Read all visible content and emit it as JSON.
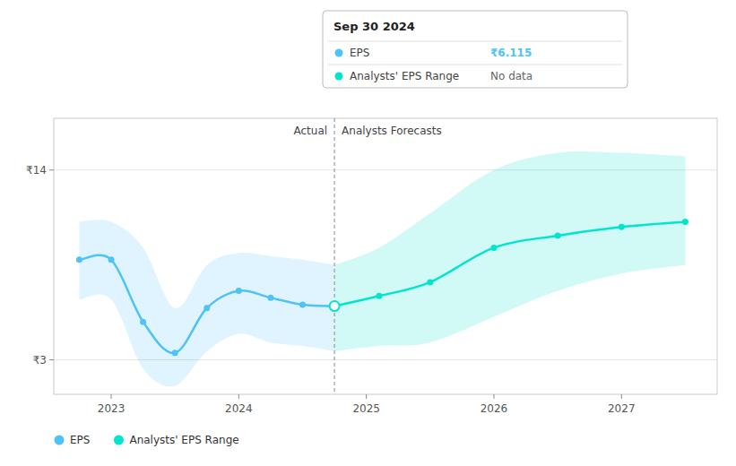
{
  "chart_data": {
    "type": "line",
    "series": [
      {
        "name": "EPS",
        "color": "#4fc3f7",
        "marker": "circle",
        "x": [
          2022.75,
          2023.0,
          2023.25,
          2023.5,
          2023.75,
          2024.0,
          2024.25,
          2024.5,
          2024.75
        ],
        "values": [
          8.8,
          8.8,
          5.2,
          3.4,
          6.0,
          7.0,
          6.6,
          6.2,
          6.115
        ],
        "band_upper": [
          11.0,
          11.0,
          9.5,
          6.0,
          8.5,
          9.2,
          9.0,
          8.8,
          8.5
        ],
        "band_lower": [
          6.5,
          6.5,
          2.5,
          1.5,
          3.5,
          4.5,
          4.0,
          3.8,
          3.5
        ]
      },
      {
        "name": "Analysts' EPS Range",
        "color": "#00e5cc",
        "marker": "circle",
        "x": [
          2024.75,
          2025.1,
          2025.5,
          2026.0,
          2026.5,
          2027.0,
          2027.5
        ],
        "values": [
          6.115,
          6.7,
          7.5,
          9.5,
          10.2,
          10.7,
          11.0
        ],
        "band_upper": [
          8.5,
          9.5,
          11.5,
          14.0,
          15.0,
          15.0,
          14.8
        ],
        "band_lower": [
          3.5,
          3.8,
          4.0,
          5.5,
          7.0,
          8.0,
          8.5
        ]
      }
    ],
    "xlim": [
      2022.55,
      2027.75
    ],
    "xticks": [
      2023,
      2024,
      2025,
      2026,
      2027
    ],
    "ylim": [
      1.0,
      17.0
    ],
    "yticks": [
      {
        "value": 3,
        "label": "₹3"
      },
      {
        "value": 14,
        "label": "₹14"
      }
    ],
    "grid": "y",
    "legend": "bottom",
    "divider": {
      "x": 2024.75,
      "labels": [
        "Actual",
        "Analysts Forecasts"
      ]
    },
    "tooltip": {
      "title": "Sep 30 2024",
      "x": 2024.75,
      "values": [
        6.115,
        null
      ],
      "value_labels": [
        "₹6.115",
        "No data"
      ]
    }
  }
}
